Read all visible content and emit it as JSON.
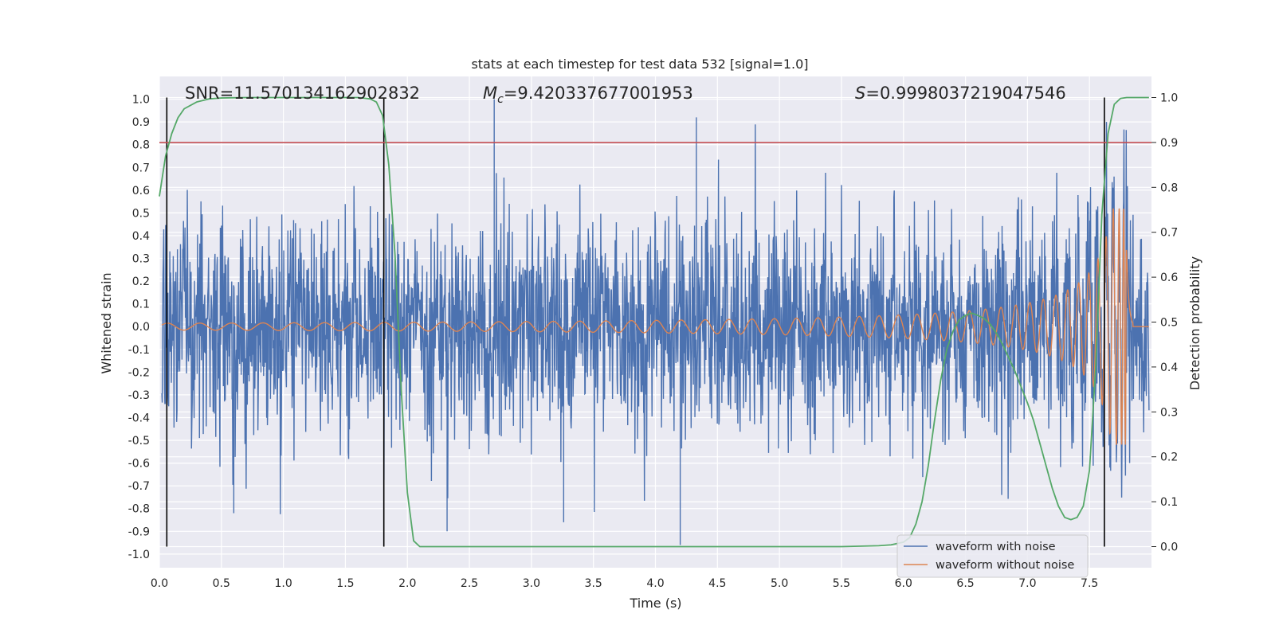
{
  "chart_data": {
    "type": "line",
    "title": "stats at each timestep for test data 532 [signal=1.0]",
    "xlabel": "Time (s)",
    "ylabel_left": "Whitened strain",
    "ylabel_right": "Detection probability",
    "xlim": [
      0.0,
      8.0
    ],
    "ylim_left": [
      -1.06,
      1.1
    ],
    "ylim_right": [
      -0.047,
      1.047
    ],
    "x_ticks": [
      "0.0",
      "0.5",
      "1.0",
      "1.5",
      "2.0",
      "2.5",
      "3.0",
      "3.5",
      "4.0",
      "4.5",
      "5.0",
      "5.5",
      "6.0",
      "6.5",
      "7.0",
      "7.5"
    ],
    "y_left_ticks": [
      "1.0",
      "0.9",
      "0.8",
      "0.7",
      "0.6",
      "0.5",
      "0.4",
      "0.3",
      "0.2",
      "0.1",
      "0.0",
      "-0.1",
      "-0.2",
      "-0.3",
      "-0.4",
      "-0.5",
      "-0.6",
      "-0.7",
      "-0.8",
      "-0.9",
      "-1.0"
    ],
    "y_right_ticks": [
      "1.0",
      "0.9",
      "0.8",
      "0.7",
      "0.6",
      "0.5",
      "0.4",
      "0.3",
      "0.2",
      "0.1",
      "0.0"
    ],
    "grid": true,
    "legend_location": "lower-right",
    "annotations": {
      "snr": "SNR=11.570134162902832",
      "mc_symbol": "M",
      "mc_sub": "c",
      "mc_value": "=9.420337677001953",
      "s_symbol": "S",
      "s_value": "=0.9998037219047546"
    },
    "threshold_line": {
      "axis": "right",
      "value": 0.9,
      "color": "#c44e52"
    },
    "vertical_lines": [
      0.06,
      1.81,
      7.62
    ],
    "series": [
      {
        "name": "waveform with noise",
        "axis": "left",
        "color": "#4c72b0",
        "kind": "noise",
        "envelope_std": 0.24,
        "max_value": 1.0,
        "min_value": -0.96
      },
      {
        "name": "waveform without noise",
        "axis": "left",
        "color": "#dd8452",
        "kind": "chirp",
        "merger_time": 7.8,
        "peak_amplitude": 0.52,
        "early_amplitude": 0.015
      },
      {
        "name": "detection probability",
        "axis": "right",
        "color": "#55a868",
        "show_in_legend": false,
        "x": [
          0.0,
          0.05,
          0.1,
          0.15,
          0.2,
          0.3,
          0.4,
          0.5,
          0.7,
          1.0,
          1.3,
          1.6,
          1.7,
          1.75,
          1.8,
          1.85,
          1.9,
          1.95,
          2.0,
          2.05,
          2.1,
          2.5,
          3.0,
          4.0,
          5.0,
          5.5,
          5.8,
          5.9,
          6.0,
          6.05,
          6.1,
          6.15,
          6.2,
          6.25,
          6.3,
          6.35,
          6.4,
          6.45,
          6.5,
          6.55,
          6.6,
          6.65,
          6.7,
          6.75,
          6.8,
          6.85,
          6.9,
          6.95,
          7.0,
          7.05,
          7.1,
          7.15,
          7.2,
          7.25,
          7.3,
          7.35,
          7.4,
          7.45,
          7.5,
          7.55,
          7.6,
          7.65,
          7.7,
          7.75,
          7.8,
          7.9,
          7.98
        ],
        "y": [
          0.78,
          0.87,
          0.92,
          0.955,
          0.975,
          0.99,
          0.997,
          0.999,
          1.0,
          1.0,
          1.0,
          1.0,
          0.997,
          0.99,
          0.96,
          0.85,
          0.65,
          0.35,
          0.12,
          0.013,
          0.0,
          0.0,
          0.0,
          0.0,
          0.0,
          0.0,
          0.002,
          0.004,
          0.01,
          0.02,
          0.05,
          0.1,
          0.18,
          0.28,
          0.37,
          0.44,
          0.48,
          0.505,
          0.515,
          0.52,
          0.515,
          0.508,
          0.495,
          0.475,
          0.45,
          0.42,
          0.39,
          0.355,
          0.32,
          0.28,
          0.23,
          0.18,
          0.13,
          0.09,
          0.065,
          0.06,
          0.065,
          0.09,
          0.17,
          0.4,
          0.74,
          0.92,
          0.985,
          0.998,
          1.0,
          1.0,
          1.0
        ]
      }
    ]
  }
}
